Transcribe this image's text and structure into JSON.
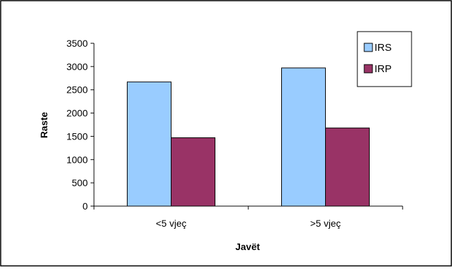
{
  "chart_data": {
    "type": "bar",
    "title": "",
    "xlabel": "Javët",
    "ylabel": "Raste",
    "categories": [
      "<5 vjeç",
      ">5 vjeç"
    ],
    "series": [
      {
        "name": "IRS",
        "values": [
          2670,
          2970
        ],
        "color": "#99ccff"
      },
      {
        "name": "IRP",
        "values": [
          1470,
          1680
        ],
        "color": "#993366"
      }
    ],
    "ylim": [
      0,
      3500
    ],
    "yticks": [
      0,
      500,
      1000,
      1500,
      2000,
      2500,
      3000,
      3500
    ],
    "grid": false,
    "legend_position": "top-right"
  }
}
